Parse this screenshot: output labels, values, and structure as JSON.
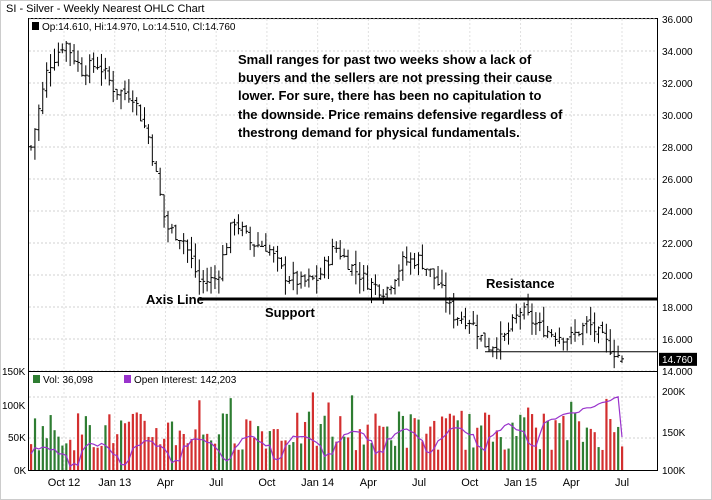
{
  "header": {
    "title": "SI - Silver - Weekly Nearest OHLC Chart",
    "ohlc_line": "Op:14.610, Hi:14.970, Lo:14.510, Cl:14.760",
    "last_price_tag": "14.760"
  },
  "annotations": {
    "commentary": [
      "Small ranges for past two weeks show a lack of",
      "buyers and the sellers are not pressing their cause",
      "lower.  For sure, there has been no capitulation to",
      "the downside.  Price remains defensive regardless of",
      "thestrong demand for physical fundamentals."
    ],
    "axis_line": "Axis Line",
    "support": "Support",
    "resistance": "Resistance"
  },
  "volume_panel": {
    "vol_label": "Vol: 36,098",
    "oi_label": "Open Interest: 142,203",
    "left_axis_ticks": [
      "150K",
      "100K",
      "50K",
      "0K"
    ],
    "right_axis_ticks": [
      "200K",
      "150K",
      "100K"
    ]
  },
  "colors": {
    "up_volume": "#2e7d32",
    "down_volume": "#d32f2f",
    "open_interest": "#9933cc",
    "price_bar": "#000000",
    "frame": "#000000"
  },
  "chart_data": [
    {
      "type": "ohlc",
      "title": "SI - Silver - Weekly Nearest OHLC Chart",
      "y_ticks": [
        36.0,
        34.0,
        32.0,
        30.0,
        28.0,
        26.0,
        24.0,
        22.0,
        20.0,
        18.0,
        16.0,
        14.0
      ],
      "ylim": [
        14.0,
        36.0
      ],
      "x_tick_labels": [
        "Oct 12",
        "Jan 13",
        "Apr",
        "Jul",
        "Oct",
        "Jan 14",
        "Apr",
        "Jul",
        "Oct",
        "Jan 15",
        "Apr",
        "Jul"
      ],
      "close_path": [
        {
          "x": "Aug 12",
          "close": 28.0
        },
        {
          "x": "Sep 12",
          "close": 33.0
        },
        {
          "x": "Oct 12",
          "close": 34.6
        },
        {
          "x": "Nov 12",
          "close": 32.8
        },
        {
          "x": "Dec 12",
          "close": 33.2
        },
        {
          "x": "Jan 13",
          "close": 31.5
        },
        {
          "x": "Feb 13",
          "close": 31.3
        },
        {
          "x": "Mar 13",
          "close": 28.5
        },
        {
          "x": "Apr 13",
          "close": 23.0
        },
        {
          "x": "May 13",
          "close": 22.3
        },
        {
          "x": "Jun 13",
          "close": 19.5
        },
        {
          "x": "Jul 13",
          "close": 19.8
        },
        {
          "x": "Aug 13",
          "close": 23.5
        },
        {
          "x": "Sep 13",
          "close": 22.0
        },
        {
          "x": "Oct 13",
          "close": 21.8
        },
        {
          "x": "Nov 13",
          "close": 20.0
        },
        {
          "x": "Dec 13",
          "close": 19.5
        },
        {
          "x": "Jan 14",
          "close": 19.8
        },
        {
          "x": "Feb 14",
          "close": 21.8
        },
        {
          "x": "Mar 14",
          "close": 20.5
        },
        {
          "x": "Apr 14",
          "close": 19.5
        },
        {
          "x": "May 14",
          "close": 19.0
        },
        {
          "x": "Jun 14",
          "close": 20.8
        },
        {
          "x": "Jul 14",
          "close": 21.0
        },
        {
          "x": "Aug 14",
          "close": 19.7
        },
        {
          "x": "Sep 14",
          "close": 17.5
        },
        {
          "x": "Oct 14",
          "close": 17.2
        },
        {
          "x": "Nov 14",
          "close": 15.5
        },
        {
          "x": "Dec 14",
          "close": 16.0
        },
        {
          "x": "Jan 15",
          "close": 17.8
        },
        {
          "x": "Feb 15",
          "close": 16.8
        },
        {
          "x": "Mar 15",
          "close": 16.3
        },
        {
          "x": "Apr 15",
          "close": 16.1
        },
        {
          "x": "May 15",
          "close": 17.0
        },
        {
          "x": "Jun 15",
          "close": 15.8
        },
        {
          "x": "Jul 15",
          "close": 14.76
        }
      ],
      "last": {
        "open": 14.61,
        "high": 14.97,
        "low": 14.51,
        "close": 14.76
      },
      "support_level": 18.5,
      "support_start": "Jun 13",
      "resistance_level": 15.2,
      "resistance_start": "Nov 14"
    },
    {
      "type": "bar",
      "title": "",
      "series": [
        {
          "name": "Vol",
          "last_value": 36098
        },
        {
          "name": "Open Interest",
          "last_value": 142203
        }
      ],
      "ylim_left": [
        0,
        150000
      ],
      "ylim_right": [
        100000,
        200000
      ]
    }
  ]
}
